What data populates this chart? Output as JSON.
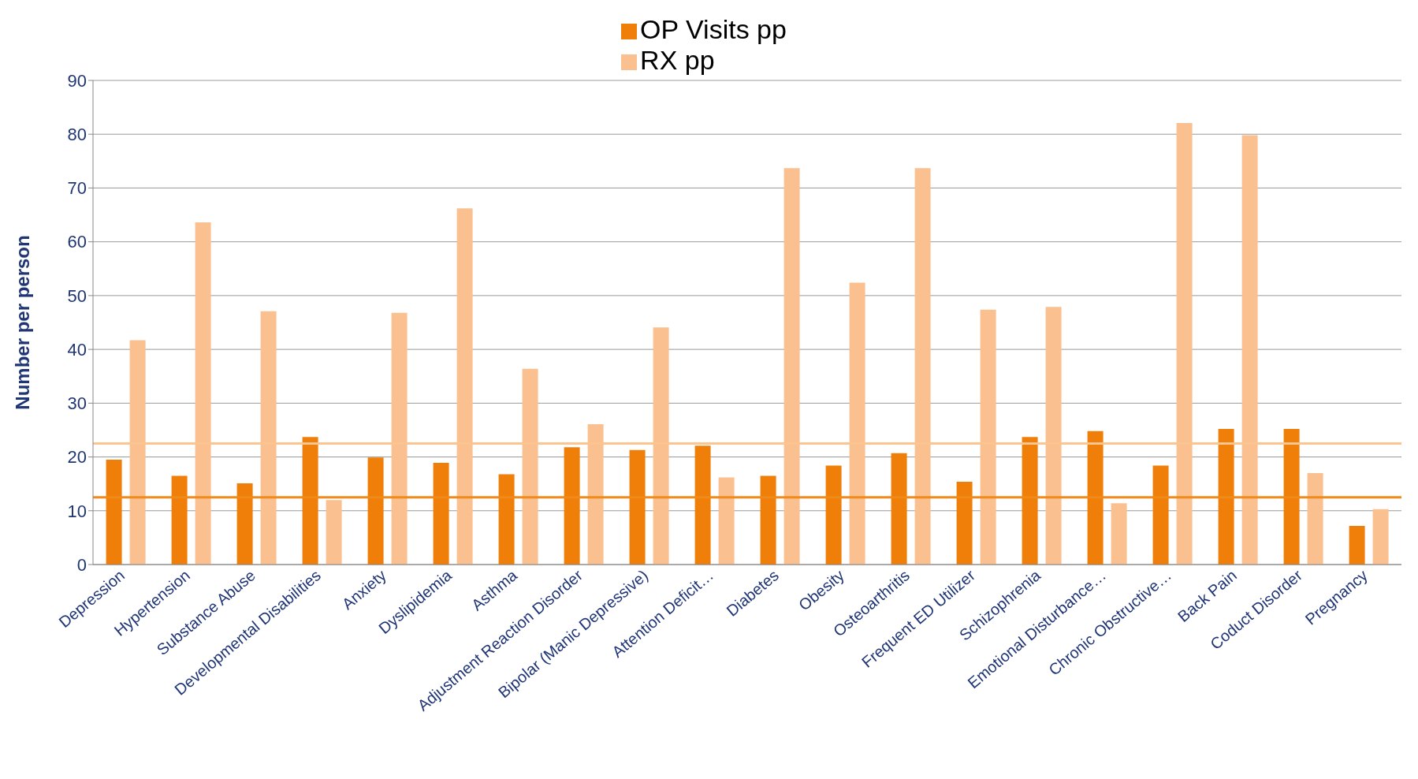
{
  "chart_data": {
    "type": "bar",
    "ylabel": "Number per person",
    "categories": [
      "Depression",
      "Hypertension",
      "Substance Abuse",
      "Developmental Disabilities",
      "Anxiety",
      "Dyslipidemia",
      "Asthma",
      "Adjustment Reaction Disorder",
      "Bipolar (Manic Depressive)",
      "Attention Deficit…",
      "Diabetes",
      "Obesity",
      "Osteoarthritis",
      "Frequent ED Utilizer",
      "Schizophrenia",
      "Emotional Disturbance…",
      "Chronic Obstructive…",
      "Back Pain",
      "Coduct Disorder",
      "Pregnancy"
    ],
    "series": [
      {
        "name": "OP Visits pp",
        "color": "#f07f09",
        "values": [
          19.5,
          16.5,
          15.1,
          23.7,
          19.9,
          18.9,
          16.8,
          21.8,
          21.3,
          22.1,
          16.5,
          18.4,
          20.7,
          15.4,
          23.7,
          24.8,
          18.4,
          25.2,
          25.2,
          7.2
        ]
      },
      {
        "name": "RX pp",
        "color": "#fac090",
        "values": [
          41.7,
          63.6,
          47.1,
          12.0,
          46.8,
          66.2,
          36.4,
          26.1,
          44.1,
          16.2,
          73.7,
          52.4,
          73.7,
          47.4,
          47.9,
          11.4,
          82.1,
          79.8,
          17.0,
          10.3
        ]
      }
    ],
    "ref_lines": [
      {
        "axis": "y",
        "value": 12.5,
        "color": "#f08a1a"
      },
      {
        "axis": "y",
        "value": 22.5,
        "color": "#fcc58f"
      }
    ],
    "ylim": [
      0,
      90
    ],
    "yticks": [
      0,
      10,
      20,
      30,
      40,
      50,
      60,
      70,
      80,
      90
    ],
    "grid": "y",
    "legend": "top"
  }
}
